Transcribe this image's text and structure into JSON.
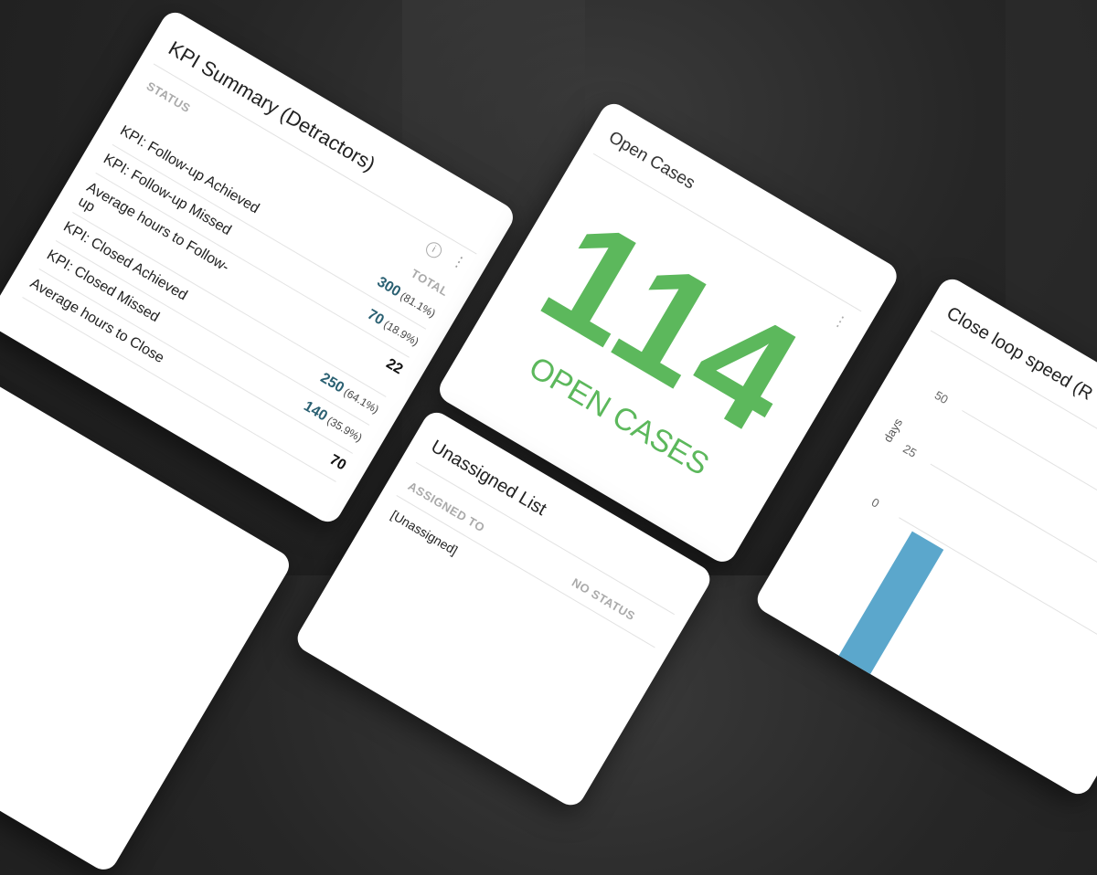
{
  "kpi": {
    "title": "KPI Summary (Detractors)",
    "status_header": "STATUS",
    "total_header": "TOTAL",
    "rows": [
      {
        "label": "KPI: Follow-up Achieved",
        "value": "300",
        "pct": "(81.1%)"
      },
      {
        "label": "KPI: Follow-up Missed",
        "value": "70",
        "pct": "(18.9%)"
      },
      {
        "label": "Average hours to Follow-up",
        "value": "22",
        "pct": ""
      },
      {
        "label": "KPI: Closed Achieved",
        "value": "250",
        "pct": "(64.1%)"
      },
      {
        "label": "KPI: Closed Missed",
        "value": "140",
        "pct": "(35.9%)"
      },
      {
        "label": "Average hours to Close",
        "value": "70",
        "pct": ""
      }
    ],
    "icons": [
      "info-icon",
      "more-vertical-icon"
    ]
  },
  "open_cases": {
    "title": "Open Cases",
    "count": "114",
    "caption": "OPEN CASES",
    "color": "#5cb85c"
  },
  "unassigned": {
    "title": "Unassigned List",
    "col1": "ASSIGNED TO",
    "col2": "NO STATUS",
    "row1": "[Unassigned]"
  },
  "close_loop": {
    "title": "Close loop speed (R",
    "ylabel": "days",
    "yticks": [
      "50",
      "25",
      "0"
    ],
    "bar_color": "#5ba7cc"
  },
  "chart_data": {
    "type": "bar",
    "title": "Close loop speed (R",
    "ylabel": "days",
    "ylim": [
      0,
      50
    ],
    "yticks": [
      0,
      25,
      50
    ]
  }
}
